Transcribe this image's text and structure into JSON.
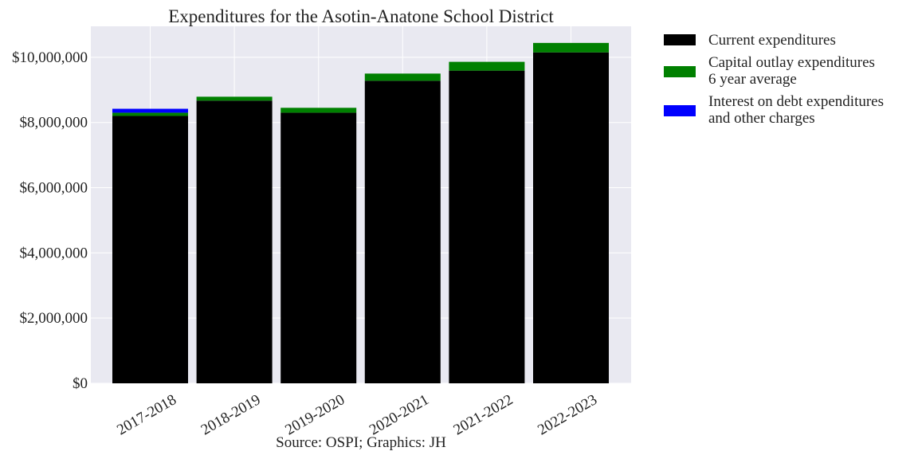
{
  "chart_data": {
    "type": "bar",
    "stacked": true,
    "title": "Expenditures for the Asotin-Anatone School District",
    "source": "Source: OSPI; Graphics: JH",
    "categories": [
      "2017-2018",
      "2018-2019",
      "2019-2020",
      "2020-2021",
      "2021-2022",
      "2022-2023"
    ],
    "series": [
      {
        "name": "Current expenditures",
        "color": "#000000",
        "values": [
          8200000,
          8670000,
          8300000,
          9280000,
          9590000,
          10150000
        ]
      },
      {
        "name": "Capital outlay expenditures\n6 year average",
        "color": "#008000",
        "values": [
          100000,
          120000,
          150000,
          220000,
          270000,
          290000
        ]
      },
      {
        "name": "Interest on debt expenditures\nand other charges",
        "color": "#0000ff",
        "values": [
          120000,
          0,
          0,
          0,
          0,
          0
        ]
      }
    ],
    "yticks": [
      0,
      2000000,
      4000000,
      6000000,
      8000000,
      10000000
    ],
    "ytick_labels": [
      "$0",
      "$2,000,000",
      "$4,000,000",
      "$6,000,000",
      "$8,000,000",
      "$10,000,000"
    ],
    "ylim": [
      0,
      10950000
    ],
    "grid": true,
    "legend_position": "outside-right"
  }
}
